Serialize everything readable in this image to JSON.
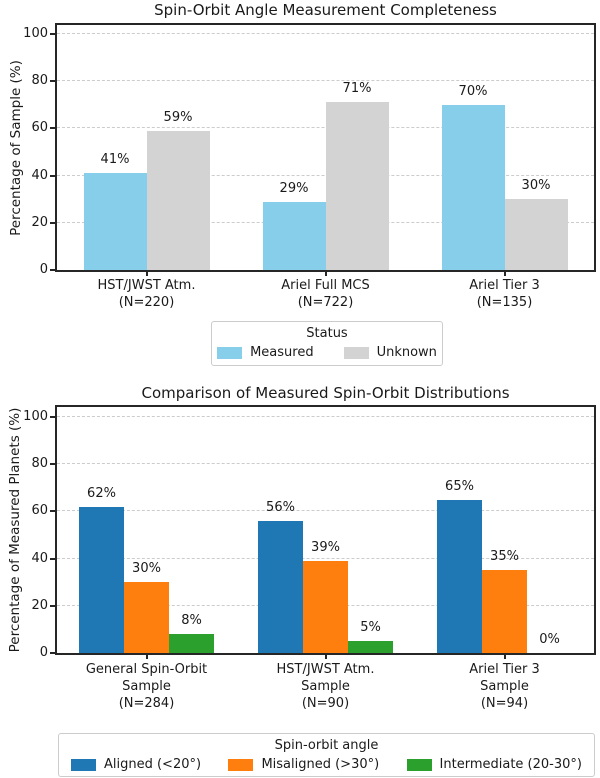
{
  "figure": {
    "background": "#ffffff"
  },
  "colors": {
    "axis": "#262626",
    "gridline": "#cccccc",
    "text": "#1a1a1a",
    "legend_border": "#cccccc",
    "measured_blue": "#87ceeb",
    "unknown_gray": "#d3d3d3",
    "aligned_blue": "#1f77b4",
    "misaligned_orange": "#ff7f0e",
    "intermediate_green": "#2ca02c"
  },
  "chart_data": [
    {
      "type": "bar",
      "title": "Spin-Orbit Angle Measurement Completeness",
      "ylabel": "Percentage of Sample (%)",
      "xlabel": "",
      "ylim": [
        0,
        105
      ],
      "yticks": [
        0,
        20,
        40,
        60,
        80,
        100
      ],
      "grid": "horizontal-dashed",
      "legend_position": "below-center",
      "categories": [
        "HST/JWST Atm.\n(N=220)",
        "Ariel Full MCS\n(N=722)",
        "Ariel Tier 3\n(N=135)"
      ],
      "series": [
        {
          "name": "Measured",
          "color": "#87ceeb",
          "values": [
            41,
            29,
            70
          ]
        },
        {
          "name": "Unknown",
          "color": "#d3d3d3",
          "values": [
            59,
            71,
            30
          ]
        }
      ],
      "bar_labels": [
        [
          "41%",
          "29%",
          "70%"
        ],
        [
          "59%",
          "71%",
          "30%"
        ]
      ],
      "legend": {
        "title": "Status"
      }
    },
    {
      "type": "bar",
      "title": "Comparison of Measured Spin-Orbit Distributions",
      "ylabel": "Percentage of Measured Planets (%)",
      "xlabel": "",
      "ylim": [
        0,
        105
      ],
      "yticks": [
        0,
        20,
        40,
        60,
        80,
        100
      ],
      "grid": "horizontal-dashed",
      "legend_position": "below-center",
      "categories": [
        "General Spin-Orbit\nSample\n(N=284)",
        "HST/JWST Atm.\nSample\n(N=90)",
        "Ariel Tier 3\nSample\n(N=94)"
      ],
      "series": [
        {
          "name": "Aligned (<20°)",
          "color": "#1f77b4",
          "values": [
            62,
            56,
            65
          ]
        },
        {
          "name": "Misaligned (>30°)",
          "color": "#ff7f0e",
          "values": [
            30,
            39,
            35
          ]
        },
        {
          "name": "Intermediate (20-30°)",
          "color": "#2ca02c",
          "values": [
            8,
            5,
            0
          ]
        }
      ],
      "bar_labels": [
        [
          "62%",
          "56%",
          "65%"
        ],
        [
          "30%",
          "39%",
          "35%"
        ],
        [
          "8%",
          "5%",
          "0%"
        ]
      ],
      "legend": {
        "title": "Spin-orbit angle"
      }
    }
  ]
}
